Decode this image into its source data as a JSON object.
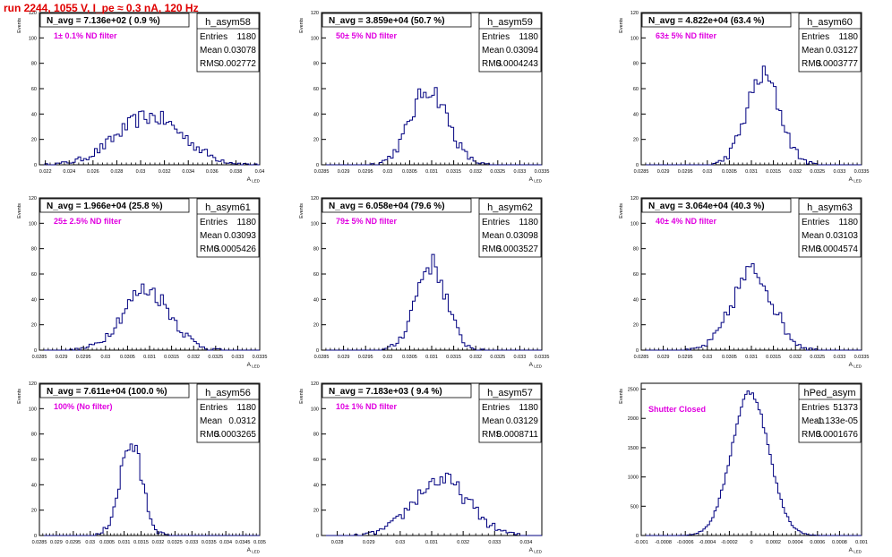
{
  "header": {
    "title": "run 2244,  1055 V, I_pe ≈ 0.3 nA, 120 Hz"
  },
  "colors": {
    "title": "#e00000",
    "annotation": "#e000e0",
    "histogram": "#000080"
  },
  "chart_data": [
    {
      "type": "histogram",
      "name": "h_asym58",
      "title": "N_avg = 7.136e+02 ( 0.9 %)",
      "annotation": "1± 0.1% ND filter",
      "stats": {
        "entries_label": "Entries",
        "entries": "1180",
        "mean_label": "Mean",
        "mean": "0.03078",
        "rms_label": "RMS",
        "rms": "0.002772"
      },
      "xlabel": "A_LED",
      "ylabel": "Events",
      "xlim": [
        0.0215,
        0.04
      ],
      "ylim": [
        0,
        120
      ],
      "xticks": [
        "0.022",
        "0.024",
        "0.026",
        "0.028",
        "0.03",
        "0.032",
        "0.034",
        "0.036",
        "0.038",
        "0.04"
      ],
      "yticks": [
        "0",
        "20",
        "40",
        "60",
        "80",
        "100",
        "120"
      ],
      "bins": 80,
      "peak": {
        "mean": 0.03078,
        "sigma": 0.0028,
        "height": 38
      }
    },
    {
      "type": "histogram",
      "name": "h_asym59",
      "title": "N_avg = 3.859e+04 (50.7 %)",
      "annotation": "50± 5% ND filter",
      "stats": {
        "entries_label": "Entries",
        "entries": "1180",
        "mean_label": "Mean",
        "mean": "0.03094",
        "rms_label": "RMS",
        "rms": "0.0004243"
      },
      "xlabel": "A_LED",
      "ylabel": "Events",
      "xlim": [
        0.0285,
        0.0335
      ],
      "ylim": [
        0,
        120
      ],
      "xticks": [
        "0.0285",
        "0.029",
        "0.0295",
        "0.03",
        "0.0305",
        "0.031",
        "0.0315",
        "0.032",
        "0.0325",
        "0.033",
        "0.0335"
      ],
      "yticks": [
        "0",
        "20",
        "40",
        "60",
        "80",
        "100",
        "120"
      ],
      "bins": 80,
      "peak": {
        "mean": 0.03094,
        "sigma": 0.00042,
        "height": 60
      }
    },
    {
      "type": "histogram",
      "name": "h_asym60",
      "title": "N_avg = 4.822e+04 (63.4 %)",
      "annotation": "63± 5% ND filter",
      "stats": {
        "entries_label": "Entries",
        "entries": "1180",
        "mean_label": "Mean",
        "mean": "0.03127",
        "rms_label": "RMS",
        "rms": "0.0003777"
      },
      "xlabel": "A_LED",
      "ylabel": "Events",
      "xlim": [
        0.0285,
        0.0335
      ],
      "ylim": [
        0,
        120
      ],
      "xticks": [
        "0.0285",
        "0.029",
        "0.0295",
        "0.03",
        "0.0305",
        "0.031",
        "0.0315",
        "0.032",
        "0.0325",
        "0.033",
        "0.0335"
      ],
      "yticks": [
        "0",
        "20",
        "40",
        "60",
        "80",
        "100",
        "120"
      ],
      "bins": 80,
      "peak": {
        "mean": 0.03127,
        "sigma": 0.00038,
        "height": 70
      }
    },
    {
      "type": "histogram",
      "name": "h_asym61",
      "title": "N_avg = 1.966e+04 (25.8 %)",
      "annotation": "25± 2.5% ND filter",
      "stats": {
        "entries_label": "Entries",
        "entries": "1180",
        "mean_label": "Mean",
        "mean": "0.03093",
        "rms_label": "RMS",
        "rms": "0.0005426"
      },
      "xlabel": "A_LED",
      "ylabel": "Events",
      "xlim": [
        0.0285,
        0.0335
      ],
      "ylim": [
        0,
        120
      ],
      "xticks": [
        "0.0285",
        "0.029",
        "0.0295",
        "0.03",
        "0.0305",
        "0.031",
        "0.0315",
        "0.032",
        "0.0325",
        "0.033",
        "0.0335"
      ],
      "yticks": [
        "0",
        "20",
        "40",
        "60",
        "80",
        "100",
        "120"
      ],
      "bins": 80,
      "peak": {
        "mean": 0.03093,
        "sigma": 0.00054,
        "height": 48
      }
    },
    {
      "type": "histogram",
      "name": "h_asym62",
      "title": "N_avg = 6.058e+04 (79.6 %)",
      "annotation": "79± 5% ND filter",
      "stats": {
        "entries_label": "Entries",
        "entries": "1180",
        "mean_label": "Mean",
        "mean": "0.03098",
        "rms_label": "RMS",
        "rms": "0.0003527"
      },
      "xlabel": "A_LED",
      "ylabel": "Events",
      "xlim": [
        0.0285,
        0.0335
      ],
      "ylim": [
        0,
        120
      ],
      "xticks": [
        "0.0285",
        "0.029",
        "0.0295",
        "0.03",
        "0.0305",
        "0.031",
        "0.0315",
        "0.032",
        "0.0325",
        "0.033",
        "0.0335"
      ],
      "yticks": [
        "0",
        "20",
        "40",
        "60",
        "80",
        "100",
        "120"
      ],
      "bins": 80,
      "peak": {
        "mean": 0.03098,
        "sigma": 0.00035,
        "height": 68
      }
    },
    {
      "type": "histogram",
      "name": "h_asym63",
      "title": "N_avg = 3.064e+04 (40.3 %)",
      "annotation": "40± 4% ND filter",
      "stats": {
        "entries_label": "Entries",
        "entries": "1180",
        "mean_label": "Mean",
        "mean": "0.03103",
        "rms_label": "RMS",
        "rms": "0.0004574"
      },
      "xlabel": "A_LED",
      "ylabel": "Events",
      "xlim": [
        0.0285,
        0.0335
      ],
      "ylim": [
        0,
        120
      ],
      "xticks": [
        "0.0285",
        "0.029",
        "0.0295",
        "0.03",
        "0.0305",
        "0.031",
        "0.0315",
        "0.032",
        "0.0325",
        "0.033",
        "0.0335"
      ],
      "yticks": [
        "0",
        "20",
        "40",
        "60",
        "80",
        "100",
        "120"
      ],
      "bins": 80,
      "peak": {
        "mean": 0.03103,
        "sigma": 0.00046,
        "height": 62
      }
    },
    {
      "type": "histogram",
      "name": "h_asym56",
      "title": "N_avg = 7.611e+04 (100.0 %)",
      "annotation": "100% (No filter)",
      "stats": {
        "entries_label": "Entries",
        "entries": "1180",
        "mean_label": "Mean",
        "mean": "0.0312",
        "rms_label": "RMS",
        "rms": "0.0003265"
      },
      "xlabel": "A_LED",
      "ylabel": "Events",
      "xlim": [
        0.0285,
        0.035
      ],
      "ylim": [
        0,
        120
      ],
      "xticks": [
        "0.0285",
        "0.029",
        "0.0295",
        "0.03",
        "0.0305",
        "0.031",
        "0.0315",
        "0.032",
        "0.0325",
        "0.033",
        "0.0335",
        "0.034",
        "0.0345",
        "0.035"
      ],
      "yticks": [
        "0",
        "20",
        "40",
        "60",
        "80",
        "100",
        "120"
      ],
      "bins": 90,
      "peak": {
        "mean": 0.0312,
        "sigma": 0.00033,
        "height": 72
      }
    },
    {
      "type": "histogram",
      "name": "h_asym57",
      "title": "N_avg = 7.183e+03 ( 9.4 %)",
      "annotation": "10± 1% ND filter",
      "stats": {
        "entries_label": "Entries",
        "entries": "1180",
        "mean_label": "Mean",
        "mean": "0.03129",
        "rms_label": "RMS",
        "rms": "0.0008711"
      },
      "xlabel": "A_LED",
      "ylabel": "Events",
      "xlim": [
        0.0275,
        0.0345
      ],
      "ylim": [
        0,
        120
      ],
      "xticks": [
        "0.028",
        "0.029",
        "0.03",
        "0.031",
        "0.032",
        "0.033",
        "0.034"
      ],
      "yticks": [
        "0",
        "20",
        "40",
        "60",
        "80",
        "100",
        "120"
      ],
      "bins": 80,
      "peak": {
        "mean": 0.03129,
        "sigma": 0.00087,
        "height": 44
      }
    },
    {
      "type": "histogram",
      "name": "hPed_asym",
      "title": "",
      "annotation": "Shutter Closed",
      "stats": {
        "entries_label": "Entries",
        "entries": "51373",
        "mean_label": "Mean",
        "mean": "-1.133e-05",
        "rms_label": "RMS",
        "rms": "0.0001676"
      },
      "xlabel": "A_LED",
      "ylabel": "Events",
      "xlim": [
        -0.001,
        0.001
      ],
      "ylim": [
        0,
        2600
      ],
      "xticks": [
        "-0.001",
        "-0.0008",
        "-0.0006",
        "-0.0004",
        "-0.0002",
        "0",
        "0.0002",
        "0.0004",
        "0.0006",
        "0.0008",
        "0.001"
      ],
      "yticks": [
        "0",
        "500",
        "1000",
        "1500",
        "2000",
        "2500"
      ],
      "bins": 100,
      "peak": {
        "mean": -1.133e-05,
        "sigma": 0.000168,
        "height": 2450
      }
    }
  ]
}
